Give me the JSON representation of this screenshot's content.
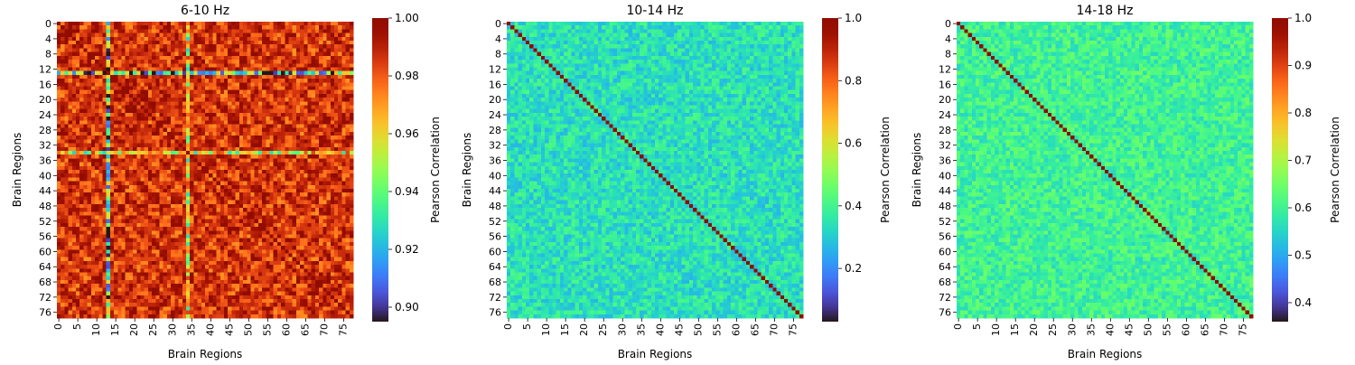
{
  "chart_data": [
    {
      "type": "heatmap",
      "title": "6-10 Hz",
      "xlabel": "Brain Regions",
      "ylabel": "Brain Regions",
      "colorbar_label": "Pearson Correlation",
      "n_regions": 78,
      "x_ticks": [
        0,
        5,
        10,
        15,
        20,
        25,
        30,
        35,
        40,
        45,
        50,
        55,
        60,
        65,
        70,
        75
      ],
      "y_ticks": [
        0,
        4,
        8,
        12,
        16,
        20,
        24,
        28,
        32,
        36,
        40,
        44,
        48,
        52,
        56,
        60,
        64,
        68,
        72,
        76
      ],
      "colorbar_ticks": [
        0.9,
        0.92,
        0.94,
        0.96,
        0.98,
        1.0
      ],
      "colorbar_tick_labels": [
        "0.90",
        "0.92",
        "0.94",
        "0.96",
        "0.98",
        "1.00"
      ],
      "vmin": 0.895,
      "vmax": 1.0,
      "colormap": "turbo",
      "pattern": {
        "base": 0.985,
        "diagonal": 1.0,
        "outlier_regions": [
          {
            "index": 13,
            "mean": 0.925,
            "spread": 0.04
          },
          {
            "index": 34,
            "mean": 0.955,
            "spread": 0.03
          }
        ]
      }
    },
    {
      "type": "heatmap",
      "title": "10-14 Hz",
      "xlabel": "Brain Regions",
      "ylabel": "Brain Regions",
      "colorbar_label": "Pearson Correlation",
      "n_regions": 78,
      "x_ticks": [
        0,
        5,
        10,
        15,
        20,
        25,
        30,
        35,
        40,
        45,
        50,
        55,
        60,
        65,
        70,
        75
      ],
      "y_ticks": [
        0,
        4,
        8,
        12,
        16,
        20,
        24,
        28,
        32,
        36,
        40,
        44,
        48,
        52,
        56,
        60,
        64,
        68,
        72,
        76
      ],
      "colorbar_ticks": [
        0.2,
        0.4,
        0.6,
        0.8,
        1.0
      ],
      "colorbar_tick_labels": [
        "0.2",
        "0.4",
        "0.6",
        "0.8",
        "1.0"
      ],
      "vmin": 0.03,
      "vmax": 1.0,
      "colormap": "turbo",
      "pattern": {
        "base": 0.34,
        "spread": 0.08,
        "diagonal": 1.0
      }
    },
    {
      "type": "heatmap",
      "title": "14-18 Hz",
      "xlabel": "Brain Regions",
      "ylabel": "Brain Regions",
      "colorbar_label": "Pearson Correlation",
      "n_regions": 78,
      "x_ticks": [
        0,
        5,
        10,
        15,
        20,
        25,
        30,
        35,
        40,
        45,
        50,
        55,
        60,
        65,
        70,
        75
      ],
      "y_ticks": [
        0,
        4,
        8,
        12,
        16,
        20,
        24,
        28,
        32,
        36,
        40,
        44,
        48,
        52,
        56,
        60,
        64,
        68,
        72,
        76
      ],
      "colorbar_ticks": [
        0.4,
        0.5,
        0.6,
        0.7,
        0.8,
        0.9,
        1.0
      ],
      "colorbar_tick_labels": [
        "0.4",
        "0.5",
        "0.6",
        "0.7",
        "0.8",
        "0.9",
        "1.0"
      ],
      "vmin": 0.36,
      "vmax": 1.0,
      "colormap": "turbo",
      "pattern": {
        "base": 0.6,
        "spread": 0.05,
        "diagonal": 1.0
      }
    }
  ]
}
